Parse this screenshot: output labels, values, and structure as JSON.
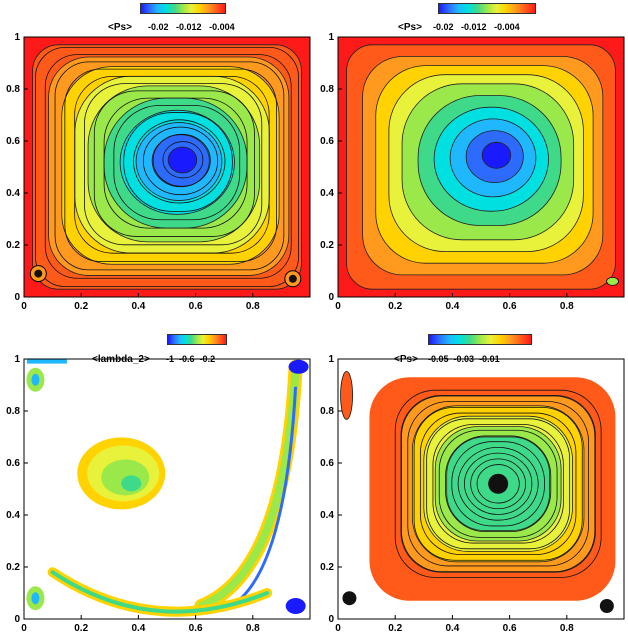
{
  "colorbar_colors": [
    "#1a1aff",
    "#2d6bff",
    "#1fb8ff",
    "#00e0e0",
    "#3fd98a",
    "#9be84a",
    "#e8f23a",
    "#ffd200",
    "#ff9a1f",
    "#ff5a1a",
    "#ff1a1a"
  ],
  "chart_data": [
    {
      "type": "heatmap",
      "panel": "top-left",
      "title": "<Ps>",
      "colorbar_ticks": [
        "-0.02",
        "-0.012",
        "-0.004"
      ],
      "x_ticks": [
        "0",
        "0.2",
        "0.4",
        "0.6",
        "0.8"
      ],
      "y_ticks": [
        "0",
        "0.2",
        "0.4",
        "0.6",
        "0.8",
        "1"
      ],
      "xlim": [
        0,
        1
      ],
      "ylim": [
        0,
        1
      ],
      "vortex_center": [
        0.56,
        0.53
      ],
      "streamlines": true
    },
    {
      "type": "heatmap",
      "panel": "top-right",
      "title": "<Ps>",
      "colorbar_ticks": [
        "-0.02",
        "-0.012",
        "-0.004"
      ],
      "x_ticks": [
        "0",
        "0.2",
        "0.4",
        "0.6",
        "0.8"
      ],
      "y_ticks": [
        "0",
        "0.2",
        "0.4",
        "0.6",
        "0.8",
        "1"
      ],
      "xlim": [
        0,
        1
      ],
      "ylim": [
        0,
        1
      ],
      "vortex_center": [
        0.56,
        0.55
      ],
      "streamlines": false
    },
    {
      "type": "heatmap",
      "panel": "bottom-left",
      "title": "<lambda_2>",
      "colorbar_ticks": [
        "-1",
        "-0.6",
        "-0.2"
      ],
      "x_ticks": [
        "0",
        "0.2",
        "0.4",
        "0.6",
        "0.8"
      ],
      "y_ticks": [
        "0",
        "0.2",
        "0.4",
        "0.6",
        "0.8",
        "1"
      ],
      "xlim": [
        0,
        1
      ],
      "ylim": [
        0,
        1
      ],
      "streamlines": false
    },
    {
      "type": "heatmap",
      "panel": "bottom-right",
      "title": "<Ps>",
      "colorbar_ticks": [
        "-0.05",
        "-0.03",
        "-0.01"
      ],
      "x_ticks": [
        "0",
        "0.2",
        "0.4",
        "0.6",
        "0.8"
      ],
      "y_ticks": [
        "0",
        "0.2",
        "0.4",
        "0.6",
        "0.8",
        "1"
      ],
      "xlim": [
        0,
        1
      ],
      "ylim": [
        0,
        1
      ],
      "vortex_center": [
        0.56,
        0.52
      ],
      "streamlines": true
    }
  ]
}
